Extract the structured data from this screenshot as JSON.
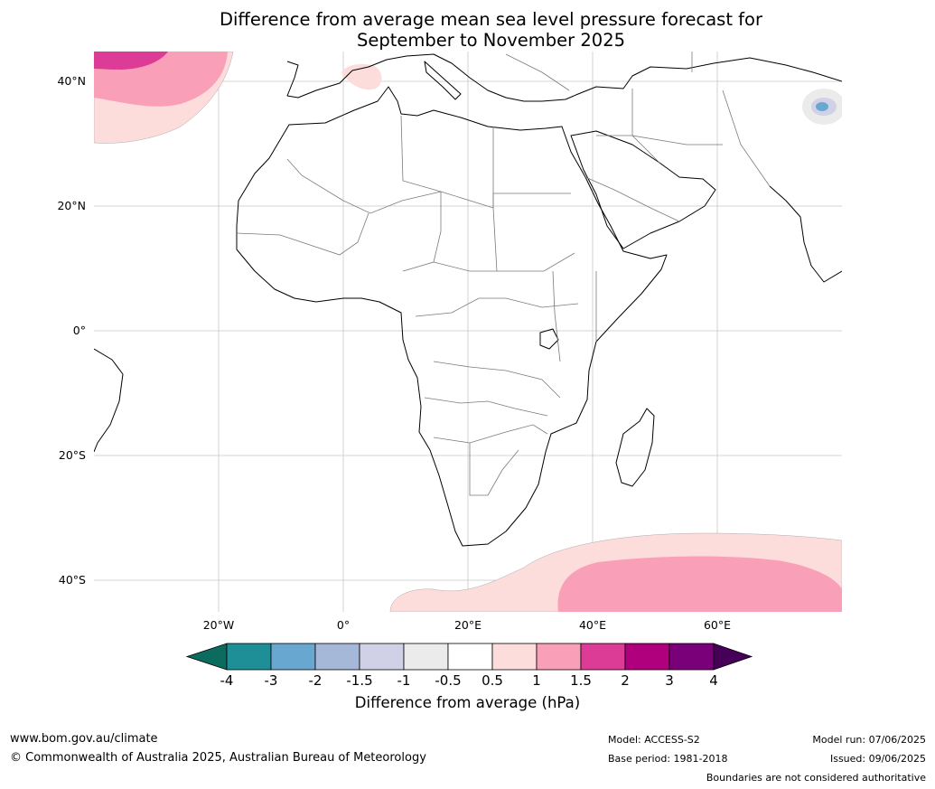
{
  "title_line1": "Difference from average mean sea level pressure forecast for",
  "title_line2": "September to November 2025",
  "map": {
    "lat_labels": [
      "40°N",
      "20°N",
      "0°",
      "20°S",
      "40°S"
    ],
    "lon_labels": [
      "20°W",
      "0°",
      "20°E",
      "40°E",
      "60°E"
    ]
  },
  "colorbar": {
    "title": "Difference from average (hPa)",
    "tick_labels": [
      "-4",
      "-3",
      "-2",
      "-1.5",
      "-1",
      "-0.5",
      "0.5",
      "1",
      "1.5",
      "2",
      "3",
      "4"
    ],
    "colors": [
      "#0a6b5e",
      "#1e8f96",
      "#68a8d0",
      "#a6b8d8",
      "#d0d0e6",
      "#ebebeb",
      "#ffffff",
      "#fddcdc",
      "#f9a0b8",
      "#dc3c96",
      "#b0007e",
      "#7a007a",
      "#460058"
    ]
  },
  "footer": {
    "website": "www.bom.gov.au/climate",
    "copyright": "© Commonwealth of Australia 2025, Australian Bureau of Meteorology",
    "model": "Model: ACCESS-S2",
    "base_period": "Base period: 1981-2018",
    "model_run": "Model run: 07/06/2025",
    "issued": "Issued: 09/06/2025",
    "disclaimer": "Boundaries are not considered authoritative"
  }
}
